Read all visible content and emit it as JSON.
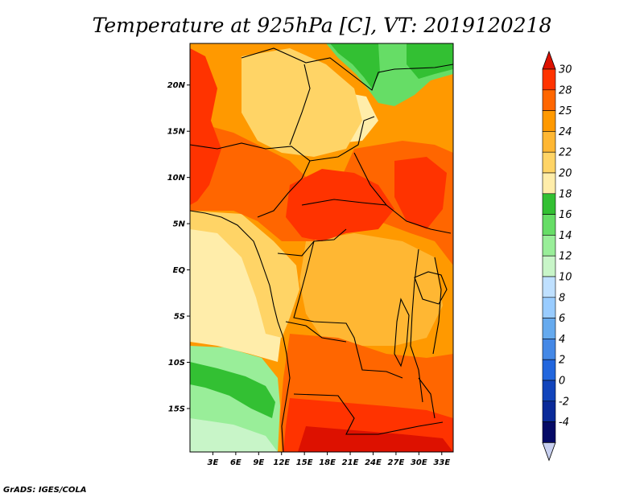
{
  "title": "Temperature at 925hPa [C], VT: 2019120218",
  "credit": "GrADS: IGES/COLA",
  "map": {
    "lat_labels": [
      "20N",
      "15N",
      "10N",
      "5N",
      "EQ",
      "5S",
      "10S",
      "15S"
    ],
    "lon_labels": [
      "3E",
      "6E",
      "9E",
      "12E",
      "15E",
      "18E",
      "21E",
      "24E",
      "27E",
      "30E",
      "33E"
    ],
    "lat_values": [
      20,
      15,
      10,
      5,
      0,
      -5,
      -10,
      -15
    ],
    "lon_values": [
      3,
      6,
      9,
      12,
      15,
      18,
      21,
      24,
      27,
      30,
      33
    ],
    "lon_range": [
      0,
      34.5
    ],
    "lat_range": [
      -19.7,
      24.5
    ]
  },
  "colorbar": {
    "labels": [
      "30",
      "28",
      "25",
      "24",
      "22",
      "20",
      "18",
      "16",
      "14",
      "12",
      "10",
      "8",
      "6",
      "4",
      "2",
      "0",
      "-2",
      "-4"
    ],
    "colors": [
      "#ff3300",
      "#ff6600",
      "#ff9900",
      "#ffb733",
      "#ffd466",
      "#ffedaa",
      "#33c033",
      "#66dd66",
      "#99ee99",
      "#c8f5c8",
      "#bfe0ff",
      "#99ccff",
      "#66aaee",
      "#4488e6",
      "#2266dd",
      "#1144bb",
      "#0a2a99",
      "#050a66"
    ],
    "top_arrow_color": "#dd1100",
    "bottom_arrow_color": "#c8d0f0"
  }
}
